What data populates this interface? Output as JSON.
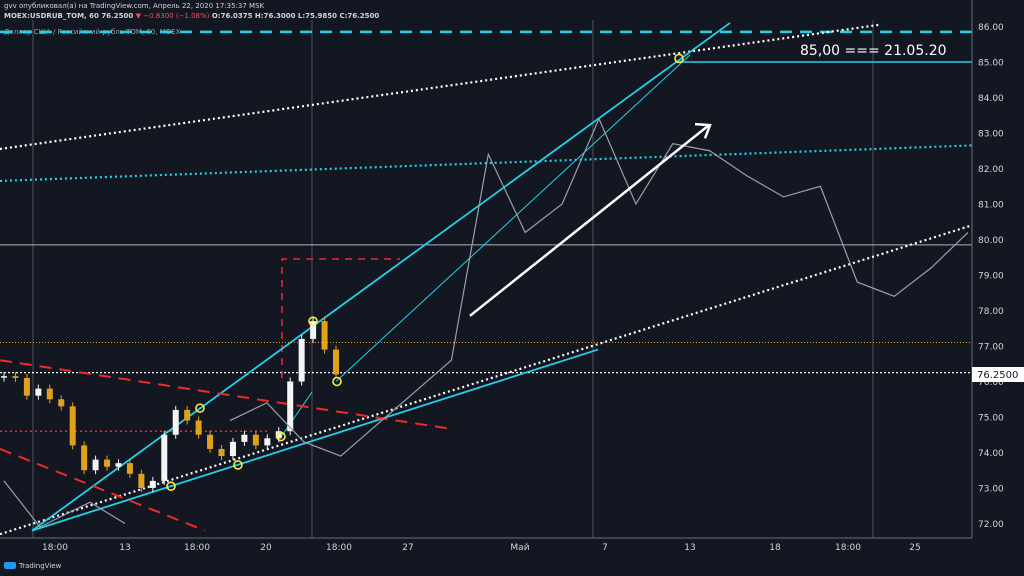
{
  "header": {
    "published": "gvv опубликовал(а) на TradingView.com, Апрель 22, 2020 17:35:37 MSK",
    "symbol": "MOEX:USDRUB_TOM, 60",
    "last": "76.2500",
    "change": "▼ −0.8300 (−1.08%)",
    "ohlc": "O:76.0375 H:76.3000 L:75.9850 C:76.2500",
    "series_title": "Доллар США / Российский рубль TOM, 60, MOEX"
  },
  "annotation": "85,00 === 21.05.20",
  "price_label": "76.2500",
  "footer": "TradingView",
  "colors": {
    "background": "#131722",
    "cyan": "#22d1e8",
    "red": "#ef2a2a",
    "white": "#ffffff",
    "candle_up": "#f5f5f5",
    "candle_down": "#e0a21c",
    "projection": "#9aa0ab",
    "yellow": "#ffeb3b"
  },
  "chart_data": {
    "type": "line",
    "ylim": [
      71.8,
      86.0
    ],
    "yticks": [
      72.0,
      73.0,
      74.0,
      75.0,
      76.0,
      77.0,
      78.0,
      79.0,
      80.0,
      81.0,
      82.0,
      83.0,
      84.0,
      85.0,
      86.0
    ],
    "xticks": [
      "18:00",
      "13",
      "18:00",
      "20",
      "18:00",
      "27",
      "Май",
      "7",
      "13",
      "18",
      "18:00",
      "25"
    ],
    "series": [
      {
        "values": [
          76.15,
          76.1,
          75.6,
          75.8,
          75.5,
          75.3,
          74.2,
          73.5,
          73.8,
          73.6,
          73.7,
          73.4,
          73.0,
          73.2,
          74.5,
          75.2,
          74.9,
          74.5,
          74.1,
          73.9,
          74.3,
          74.5,
          74.2,
          74.4,
          74.6,
          76.0,
          77.2,
          77.7,
          76.9,
          76.2
        ]
      }
    ],
    "projection": [
      82.4,
      80.2,
      81.0,
      83.4,
      81.0,
      82.7,
      82.5,
      81.8,
      81.2,
      81.5,
      78.8,
      78.4,
      79.2,
      80.2
    ]
  }
}
